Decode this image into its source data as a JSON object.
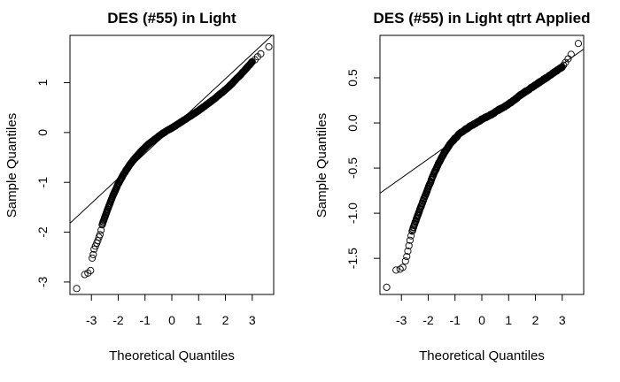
{
  "chart_data": [
    {
      "type": "scatter",
      "title": "DES (#55) in Light",
      "xlabel": "Theoretical Quantiles",
      "ylabel": "Sample Quantiles",
      "xlim": [
        -3.8,
        3.8
      ],
      "ylim": [
        -3.25,
        1.95
      ],
      "x_ticks": [
        -3,
        -2,
        -1,
        0,
        1,
        2,
        3
      ],
      "y_ticks": [
        -3,
        -2,
        -1,
        0,
        1
      ],
      "grid": false,
      "reference_line": {
        "slope": 0.5,
        "intercept": 0.08
      },
      "quantile_curve": [
        [
          -2.6,
          -1.85
        ],
        [
          -2.4,
          -1.55
        ],
        [
          -2.2,
          -1.27
        ],
        [
          -2.0,
          -1.03
        ],
        [
          -1.8,
          -0.84
        ],
        [
          -1.6,
          -0.67
        ],
        [
          -1.4,
          -0.53
        ],
        [
          -1.2,
          -0.41
        ],
        [
          -1.0,
          -0.3
        ],
        [
          -0.8,
          -0.2
        ],
        [
          -0.6,
          -0.12
        ],
        [
          -0.4,
          -0.04
        ],
        [
          -0.2,
          0.03
        ],
        [
          0.0,
          0.09
        ],
        [
          0.2,
          0.16
        ],
        [
          0.4,
          0.23
        ],
        [
          0.6,
          0.3
        ],
        [
          0.8,
          0.37
        ],
        [
          1.0,
          0.44
        ],
        [
          1.2,
          0.52
        ],
        [
          1.4,
          0.6
        ],
        [
          1.6,
          0.68
        ],
        [
          1.8,
          0.77
        ],
        [
          2.0,
          0.86
        ],
        [
          2.2,
          0.96
        ],
        [
          2.4,
          1.07
        ],
        [
          2.6,
          1.18
        ],
        [
          2.8,
          1.3
        ],
        [
          3.0,
          1.42
        ]
      ],
      "tail_points": [
        [
          -3.55,
          -3.13
        ],
        [
          -3.25,
          -2.85
        ],
        [
          -3.13,
          -2.82
        ],
        [
          -3.03,
          -2.77
        ],
        [
          -2.97,
          -2.52
        ],
        [
          -2.93,
          -2.45
        ],
        [
          -2.9,
          -2.34
        ],
        [
          -2.85,
          -2.28
        ],
        [
          -2.8,
          -2.22
        ],
        [
          -2.76,
          -2.17
        ],
        [
          -2.72,
          -2.1
        ],
        [
          -2.68,
          -2.05
        ],
        [
          -2.64,
          -1.96
        ],
        [
          3.1,
          1.46
        ],
        [
          3.2,
          1.52
        ],
        [
          3.32,
          1.58
        ],
        [
          3.62,
          1.72
        ]
      ]
    },
    {
      "type": "scatter",
      "title": "DES (#55) in Light qtrt Applied",
      "xlabel": "Theoretical Quantiles",
      "ylabel": "Sample Quantiles",
      "xlim": [
        -3.8,
        3.8
      ],
      "ylim": [
        -1.9,
        0.97
      ],
      "x_ticks": [
        -3,
        -2,
        -1,
        0,
        1,
        2,
        3
      ],
      "y_ticks": [
        -1.5,
        -1.0,
        -0.5,
        0.0,
        0.5
      ],
      "y_tick_labels": [
        "-1.5",
        "-1.0",
        "-0.5",
        "0.0",
        "0.5"
      ],
      "grid": false,
      "reference_line": {
        "slope": 0.21,
        "intercept": 0.02
      },
      "quantile_curve": [
        [
          -2.6,
          -1.2
        ],
        [
          -2.4,
          -1.03
        ],
        [
          -2.2,
          -0.87
        ],
        [
          -2.0,
          -0.72
        ],
        [
          -1.8,
          -0.57
        ],
        [
          -1.6,
          -0.44
        ],
        [
          -1.4,
          -0.33
        ],
        [
          -1.2,
          -0.24
        ],
        [
          -1.0,
          -0.17
        ],
        [
          -0.8,
          -0.11
        ],
        [
          -0.6,
          -0.07
        ],
        [
          -0.4,
          -0.03
        ],
        [
          -0.2,
          0.0
        ],
        [
          0.0,
          0.04
        ],
        [
          0.2,
          0.07
        ],
        [
          0.4,
          0.1
        ],
        [
          0.6,
          0.14
        ],
        [
          0.8,
          0.17
        ],
        [
          1.0,
          0.21
        ],
        [
          1.2,
          0.25
        ],
        [
          1.4,
          0.3
        ],
        [
          1.6,
          0.34
        ],
        [
          1.8,
          0.38
        ],
        [
          2.0,
          0.42
        ],
        [
          2.2,
          0.46
        ],
        [
          2.4,
          0.5
        ],
        [
          2.6,
          0.54
        ],
        [
          2.8,
          0.58
        ],
        [
          3.0,
          0.62
        ]
      ],
      "tail_points": [
        [
          -3.55,
          -1.82
        ],
        [
          -3.2,
          -1.63
        ],
        [
          -3.05,
          -1.62
        ],
        [
          -2.95,
          -1.6
        ],
        [
          -2.85,
          -1.53
        ],
        [
          -2.8,
          -1.48
        ],
        [
          -2.76,
          -1.42
        ],
        [
          -2.72,
          -1.36
        ],
        [
          -2.68,
          -1.3
        ],
        [
          -2.64,
          -1.25
        ],
        [
          3.05,
          0.64
        ],
        [
          3.12,
          0.67
        ],
        [
          3.22,
          0.71
        ],
        [
          3.33,
          0.76
        ],
        [
          3.6,
          0.88
        ]
      ]
    }
  ]
}
